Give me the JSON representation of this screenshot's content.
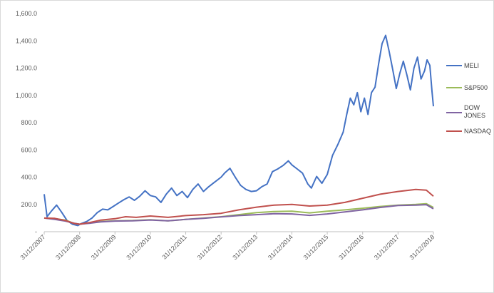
{
  "chart_data": {
    "type": "line",
    "ylim": [
      0,
      1600
    ],
    "y_ticks": [
      "1,600.0",
      "1,400.0",
      "1,200.0",
      "1,000.0",
      "800.0",
      "600.0",
      "400.0",
      "200.0",
      "-"
    ],
    "y_tick_values": [
      1600,
      1400,
      1200,
      1000,
      800,
      600,
      400,
      200,
      0
    ],
    "x_ticks": [
      "31/12/2007",
      "31/12/2008",
      "31/12/2009",
      "31/12/2010",
      "31/12/2011",
      "31/12/2012",
      "31/12/2013",
      "31/12/2014",
      "31/12/2015",
      "31/12/2016",
      "31/12/2017",
      "31/12/2018"
    ],
    "x_tick_years": [
      2008,
      2009,
      2010,
      2011,
      2012,
      2013,
      2014,
      2015,
      2016,
      2017,
      2018,
      2019
    ],
    "grid": false,
    "legend_position": "right",
    "series": [
      {
        "name": "MELI",
        "color": "#4472c4",
        "points": [
          [
            2008.0,
            275
          ],
          [
            2008.08,
            110
          ],
          [
            2008.2,
            150
          ],
          [
            2008.35,
            195
          ],
          [
            2008.5,
            140
          ],
          [
            2008.65,
            80
          ],
          [
            2008.8,
            55
          ],
          [
            2008.95,
            45
          ],
          [
            2009.05,
            60
          ],
          [
            2009.2,
            75
          ],
          [
            2009.35,
            100
          ],
          [
            2009.5,
            140
          ],
          [
            2009.65,
            165
          ],
          [
            2009.8,
            160
          ],
          [
            2009.95,
            185
          ],
          [
            2010.1,
            210
          ],
          [
            2010.25,
            235
          ],
          [
            2010.4,
            255
          ],
          [
            2010.55,
            230
          ],
          [
            2010.7,
            260
          ],
          [
            2010.85,
            300
          ],
          [
            2011.0,
            265
          ],
          [
            2011.15,
            255
          ],
          [
            2011.3,
            215
          ],
          [
            2011.45,
            275
          ],
          [
            2011.6,
            320
          ],
          [
            2011.75,
            265
          ],
          [
            2011.9,
            295
          ],
          [
            2012.05,
            250
          ],
          [
            2012.2,
            310
          ],
          [
            2012.35,
            350
          ],
          [
            2012.5,
            295
          ],
          [
            2012.65,
            330
          ],
          [
            2012.8,
            360
          ],
          [
            2013.0,
            400
          ],
          [
            2013.1,
            430
          ],
          [
            2013.25,
            465
          ],
          [
            2013.4,
            400
          ],
          [
            2013.55,
            340
          ],
          [
            2013.7,
            310
          ],
          [
            2013.85,
            295
          ],
          [
            2014.0,
            300
          ],
          [
            2014.15,
            330
          ],
          [
            2014.3,
            350
          ],
          [
            2014.45,
            440
          ],
          [
            2014.6,
            460
          ],
          [
            2014.75,
            485
          ],
          [
            2014.9,
            520
          ],
          [
            2015.0,
            490
          ],
          [
            2015.15,
            460
          ],
          [
            2015.3,
            430
          ],
          [
            2015.45,
            350
          ],
          [
            2015.55,
            320
          ],
          [
            2015.7,
            405
          ],
          [
            2015.85,
            355
          ],
          [
            2016.0,
            420
          ],
          [
            2016.15,
            560
          ],
          [
            2016.3,
            640
          ],
          [
            2016.45,
            730
          ],
          [
            2016.55,
            860
          ],
          [
            2016.65,
            980
          ],
          [
            2016.75,
            930
          ],
          [
            2016.85,
            1020
          ],
          [
            2016.95,
            880
          ],
          [
            2017.05,
            980
          ],
          [
            2017.15,
            860
          ],
          [
            2017.25,
            1020
          ],
          [
            2017.35,
            1060
          ],
          [
            2017.45,
            1230
          ],
          [
            2017.55,
            1380
          ],
          [
            2017.65,
            1440
          ],
          [
            2017.75,
            1320
          ],
          [
            2017.85,
            1190
          ],
          [
            2017.95,
            1050
          ],
          [
            2018.05,
            1160
          ],
          [
            2018.15,
            1250
          ],
          [
            2018.25,
            1150
          ],
          [
            2018.35,
            1040
          ],
          [
            2018.45,
            1200
          ],
          [
            2018.55,
            1280
          ],
          [
            2018.65,
            1120
          ],
          [
            2018.75,
            1180
          ],
          [
            2018.82,
            1260
          ],
          [
            2018.9,
            1220
          ],
          [
            2018.96,
            1030
          ],
          [
            2019.0,
            920
          ]
        ]
      },
      {
        "name": "S&P500",
        "color": "#9bbb59",
        "points": [
          [
            2008.0,
            100
          ],
          [
            2008.3,
            95
          ],
          [
            2008.6,
            85
          ],
          [
            2008.85,
            60
          ],
          [
            2009.0,
            55
          ],
          [
            2009.3,
            65
          ],
          [
            2009.6,
            75
          ],
          [
            2010.0,
            80
          ],
          [
            2010.5,
            82
          ],
          [
            2011.0,
            88
          ],
          [
            2011.5,
            80
          ],
          [
            2012.0,
            90
          ],
          [
            2012.5,
            100
          ],
          [
            2013.0,
            110
          ],
          [
            2013.5,
            125
          ],
          [
            2014.0,
            140
          ],
          [
            2014.5,
            148
          ],
          [
            2015.0,
            150
          ],
          [
            2015.5,
            138
          ],
          [
            2016.0,
            150
          ],
          [
            2016.5,
            160
          ],
          [
            2017.0,
            172
          ],
          [
            2017.5,
            185
          ],
          [
            2018.0,
            195
          ],
          [
            2018.5,
            200
          ],
          [
            2018.8,
            205
          ],
          [
            2019.0,
            178
          ]
        ]
      },
      {
        "name": "DOW JONES",
        "color": "#8064a2",
        "points": [
          [
            2008.0,
            100
          ],
          [
            2008.3,
            90
          ],
          [
            2008.6,
            78
          ],
          [
            2008.85,
            62
          ],
          [
            2009.0,
            55
          ],
          [
            2009.3,
            62
          ],
          [
            2009.6,
            72
          ],
          [
            2010.0,
            78
          ],
          [
            2010.5,
            80
          ],
          [
            2011.0,
            86
          ],
          [
            2011.5,
            80
          ],
          [
            2012.0,
            90
          ],
          [
            2012.5,
            98
          ],
          [
            2013.0,
            108
          ],
          [
            2013.5,
            118
          ],
          [
            2014.0,
            125
          ],
          [
            2014.5,
            132
          ],
          [
            2015.0,
            130
          ],
          [
            2015.5,
            120
          ],
          [
            2016.0,
            130
          ],
          [
            2016.5,
            145
          ],
          [
            2017.0,
            160
          ],
          [
            2017.5,
            178
          ],
          [
            2018.0,
            192
          ],
          [
            2018.5,
            195
          ],
          [
            2018.8,
            198
          ],
          [
            2019.0,
            168
          ]
        ]
      },
      {
        "name": "NASDAQ",
        "color": "#c0504d",
        "points": [
          [
            2008.0,
            100
          ],
          [
            2008.3,
            98
          ],
          [
            2008.6,
            82
          ],
          [
            2008.85,
            60
          ],
          [
            2009.0,
            55
          ],
          [
            2009.3,
            68
          ],
          [
            2009.6,
            85
          ],
          [
            2010.0,
            95
          ],
          [
            2010.3,
            110
          ],
          [
            2010.6,
            105
          ],
          [
            2011.0,
            115
          ],
          [
            2011.5,
            105
          ],
          [
            2012.0,
            118
          ],
          [
            2012.5,
            125
          ],
          [
            2013.0,
            135
          ],
          [
            2013.5,
            160
          ],
          [
            2014.0,
            180
          ],
          [
            2014.5,
            195
          ],
          [
            2015.0,
            200
          ],
          [
            2015.5,
            188
          ],
          [
            2016.0,
            195
          ],
          [
            2016.5,
            215
          ],
          [
            2017.0,
            245
          ],
          [
            2017.5,
            275
          ],
          [
            2018.0,
            295
          ],
          [
            2018.5,
            310
          ],
          [
            2018.8,
            305
          ],
          [
            2019.0,
            260
          ]
        ]
      }
    ]
  }
}
